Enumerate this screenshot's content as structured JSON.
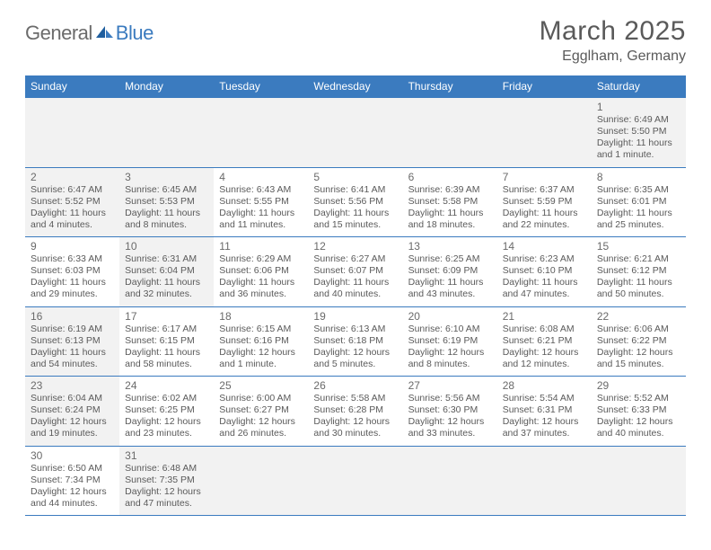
{
  "logo": {
    "general": "General",
    "blue": "Blue"
  },
  "title": "March 2025",
  "location": "Egglham, Germany",
  "day_headers": [
    "Sunday",
    "Monday",
    "Tuesday",
    "Wednesday",
    "Thursday",
    "Friday",
    "Saturday"
  ],
  "colors": {
    "header_bg": "#3b7bbf",
    "header_text": "#ffffff",
    "border": "#3b7bbf",
    "shade_bg": "#f2f2f2",
    "text": "#5a5a5a"
  },
  "weeks": [
    [
      {
        "empty": true,
        "shade": true
      },
      {
        "empty": true,
        "shade": true
      },
      {
        "empty": true,
        "shade": true
      },
      {
        "empty": true,
        "shade": true
      },
      {
        "empty": true,
        "shade": true
      },
      {
        "empty": true,
        "shade": true
      },
      {
        "day": "1",
        "shade": true,
        "sunrise": "Sunrise: 6:49 AM",
        "sunset": "Sunset: 5:50 PM",
        "daylight": "Daylight: 11 hours and 1 minute."
      }
    ],
    [
      {
        "day": "2",
        "shade": true,
        "sunrise": "Sunrise: 6:47 AM",
        "sunset": "Sunset: 5:52 PM",
        "daylight": "Daylight: 11 hours and 4 minutes."
      },
      {
        "day": "3",
        "shade": true,
        "sunrise": "Sunrise: 6:45 AM",
        "sunset": "Sunset: 5:53 PM",
        "daylight": "Daylight: 11 hours and 8 minutes."
      },
      {
        "day": "4",
        "sunrise": "Sunrise: 6:43 AM",
        "sunset": "Sunset: 5:55 PM",
        "daylight": "Daylight: 11 hours and 11 minutes."
      },
      {
        "day": "5",
        "sunrise": "Sunrise: 6:41 AM",
        "sunset": "Sunset: 5:56 PM",
        "daylight": "Daylight: 11 hours and 15 minutes."
      },
      {
        "day": "6",
        "sunrise": "Sunrise: 6:39 AM",
        "sunset": "Sunset: 5:58 PM",
        "daylight": "Daylight: 11 hours and 18 minutes."
      },
      {
        "day": "7",
        "sunrise": "Sunrise: 6:37 AM",
        "sunset": "Sunset: 5:59 PM",
        "daylight": "Daylight: 11 hours and 22 minutes."
      },
      {
        "day": "8",
        "sunrise": "Sunrise: 6:35 AM",
        "sunset": "Sunset: 6:01 PM",
        "daylight": "Daylight: 11 hours and 25 minutes."
      }
    ],
    [
      {
        "day": "9",
        "sunrise": "Sunrise: 6:33 AM",
        "sunset": "Sunset: 6:03 PM",
        "daylight": "Daylight: 11 hours and 29 minutes."
      },
      {
        "day": "10",
        "shade": true,
        "sunrise": "Sunrise: 6:31 AM",
        "sunset": "Sunset: 6:04 PM",
        "daylight": "Daylight: 11 hours and 32 minutes."
      },
      {
        "day": "11",
        "sunrise": "Sunrise: 6:29 AM",
        "sunset": "Sunset: 6:06 PM",
        "daylight": "Daylight: 11 hours and 36 minutes."
      },
      {
        "day": "12",
        "sunrise": "Sunrise: 6:27 AM",
        "sunset": "Sunset: 6:07 PM",
        "daylight": "Daylight: 11 hours and 40 minutes."
      },
      {
        "day": "13",
        "sunrise": "Sunrise: 6:25 AM",
        "sunset": "Sunset: 6:09 PM",
        "daylight": "Daylight: 11 hours and 43 minutes."
      },
      {
        "day": "14",
        "sunrise": "Sunrise: 6:23 AM",
        "sunset": "Sunset: 6:10 PM",
        "daylight": "Daylight: 11 hours and 47 minutes."
      },
      {
        "day": "15",
        "sunrise": "Sunrise: 6:21 AM",
        "sunset": "Sunset: 6:12 PM",
        "daylight": "Daylight: 11 hours and 50 minutes."
      }
    ],
    [
      {
        "day": "16",
        "shade": true,
        "sunrise": "Sunrise: 6:19 AM",
        "sunset": "Sunset: 6:13 PM",
        "daylight": "Daylight: 11 hours and 54 minutes."
      },
      {
        "day": "17",
        "sunrise": "Sunrise: 6:17 AM",
        "sunset": "Sunset: 6:15 PM",
        "daylight": "Daylight: 11 hours and 58 minutes."
      },
      {
        "day": "18",
        "sunrise": "Sunrise: 6:15 AM",
        "sunset": "Sunset: 6:16 PM",
        "daylight": "Daylight: 12 hours and 1 minute."
      },
      {
        "day": "19",
        "sunrise": "Sunrise: 6:13 AM",
        "sunset": "Sunset: 6:18 PM",
        "daylight": "Daylight: 12 hours and 5 minutes."
      },
      {
        "day": "20",
        "sunrise": "Sunrise: 6:10 AM",
        "sunset": "Sunset: 6:19 PM",
        "daylight": "Daylight: 12 hours and 8 minutes."
      },
      {
        "day": "21",
        "sunrise": "Sunrise: 6:08 AM",
        "sunset": "Sunset: 6:21 PM",
        "daylight": "Daylight: 12 hours and 12 minutes."
      },
      {
        "day": "22",
        "sunrise": "Sunrise: 6:06 AM",
        "sunset": "Sunset: 6:22 PM",
        "daylight": "Daylight: 12 hours and 15 minutes."
      }
    ],
    [
      {
        "day": "23",
        "shade": true,
        "sunrise": "Sunrise: 6:04 AM",
        "sunset": "Sunset: 6:24 PM",
        "daylight": "Daylight: 12 hours and 19 minutes."
      },
      {
        "day": "24",
        "sunrise": "Sunrise: 6:02 AM",
        "sunset": "Sunset: 6:25 PM",
        "daylight": "Daylight: 12 hours and 23 minutes."
      },
      {
        "day": "25",
        "sunrise": "Sunrise: 6:00 AM",
        "sunset": "Sunset: 6:27 PM",
        "daylight": "Daylight: 12 hours and 26 minutes."
      },
      {
        "day": "26",
        "sunrise": "Sunrise: 5:58 AM",
        "sunset": "Sunset: 6:28 PM",
        "daylight": "Daylight: 12 hours and 30 minutes."
      },
      {
        "day": "27",
        "sunrise": "Sunrise: 5:56 AM",
        "sunset": "Sunset: 6:30 PM",
        "daylight": "Daylight: 12 hours and 33 minutes."
      },
      {
        "day": "28",
        "sunrise": "Sunrise: 5:54 AM",
        "sunset": "Sunset: 6:31 PM",
        "daylight": "Daylight: 12 hours and 37 minutes."
      },
      {
        "day": "29",
        "sunrise": "Sunrise: 5:52 AM",
        "sunset": "Sunset: 6:33 PM",
        "daylight": "Daylight: 12 hours and 40 minutes."
      }
    ],
    [
      {
        "day": "30",
        "sunrise": "Sunrise: 6:50 AM",
        "sunset": "Sunset: 7:34 PM",
        "daylight": "Daylight: 12 hours and 44 minutes."
      },
      {
        "day": "31",
        "shade": true,
        "sunrise": "Sunrise: 6:48 AM",
        "sunset": "Sunset: 7:35 PM",
        "daylight": "Daylight: 12 hours and 47 minutes."
      },
      {
        "empty": true
      },
      {
        "empty": true
      },
      {
        "empty": true
      },
      {
        "empty": true
      },
      {
        "empty": true
      }
    ]
  ]
}
